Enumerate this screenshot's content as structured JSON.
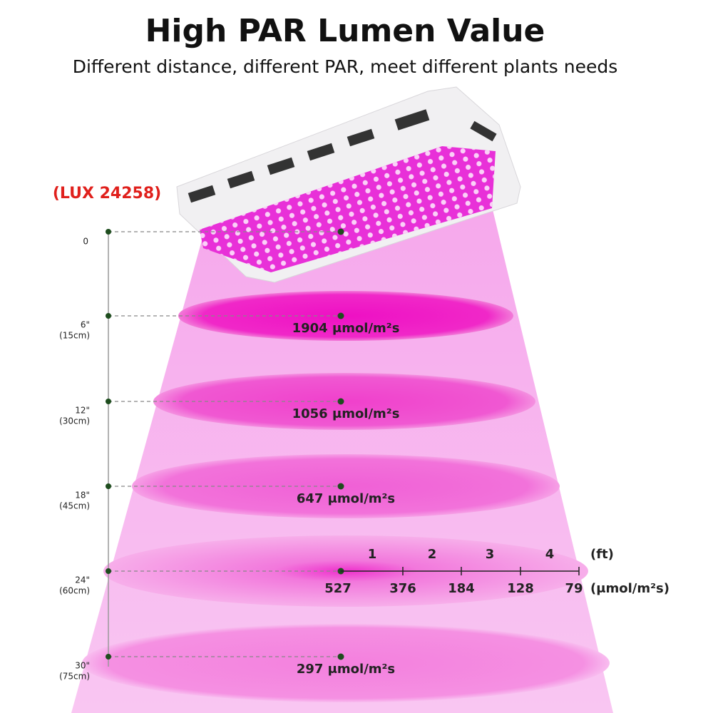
{
  "header": {
    "title": "High PAR Lumen Value",
    "subtitle": "Different distance, different PAR, meet different plants needs"
  },
  "lux": "(LUX 24258)",
  "levels": [
    {
      "inch": "0"
    },
    {
      "inch": "6\"",
      "cm": "(15cm)",
      "par": "1904 μmol/m²s"
    },
    {
      "inch": "12\"",
      "cm": "(30cm)",
      "par": "1056 μmol/m²s"
    },
    {
      "inch": "18\"",
      "cm": "(45cm)",
      "par": "647 μmol/m²s"
    },
    {
      "inch": "24\"",
      "cm": "(60cm)"
    },
    {
      "inch": "30\"",
      "cm": "(75cm)",
      "par": "297 μmol/m²s"
    }
  ],
  "scale": {
    "distance_labels": [
      "1",
      "2",
      "3",
      "4"
    ],
    "distance_unit": "(ft)",
    "par_labels": [
      "527",
      "376",
      "184",
      "128",
      "79"
    ],
    "par_unit": "(μmol/m²s)"
  }
}
